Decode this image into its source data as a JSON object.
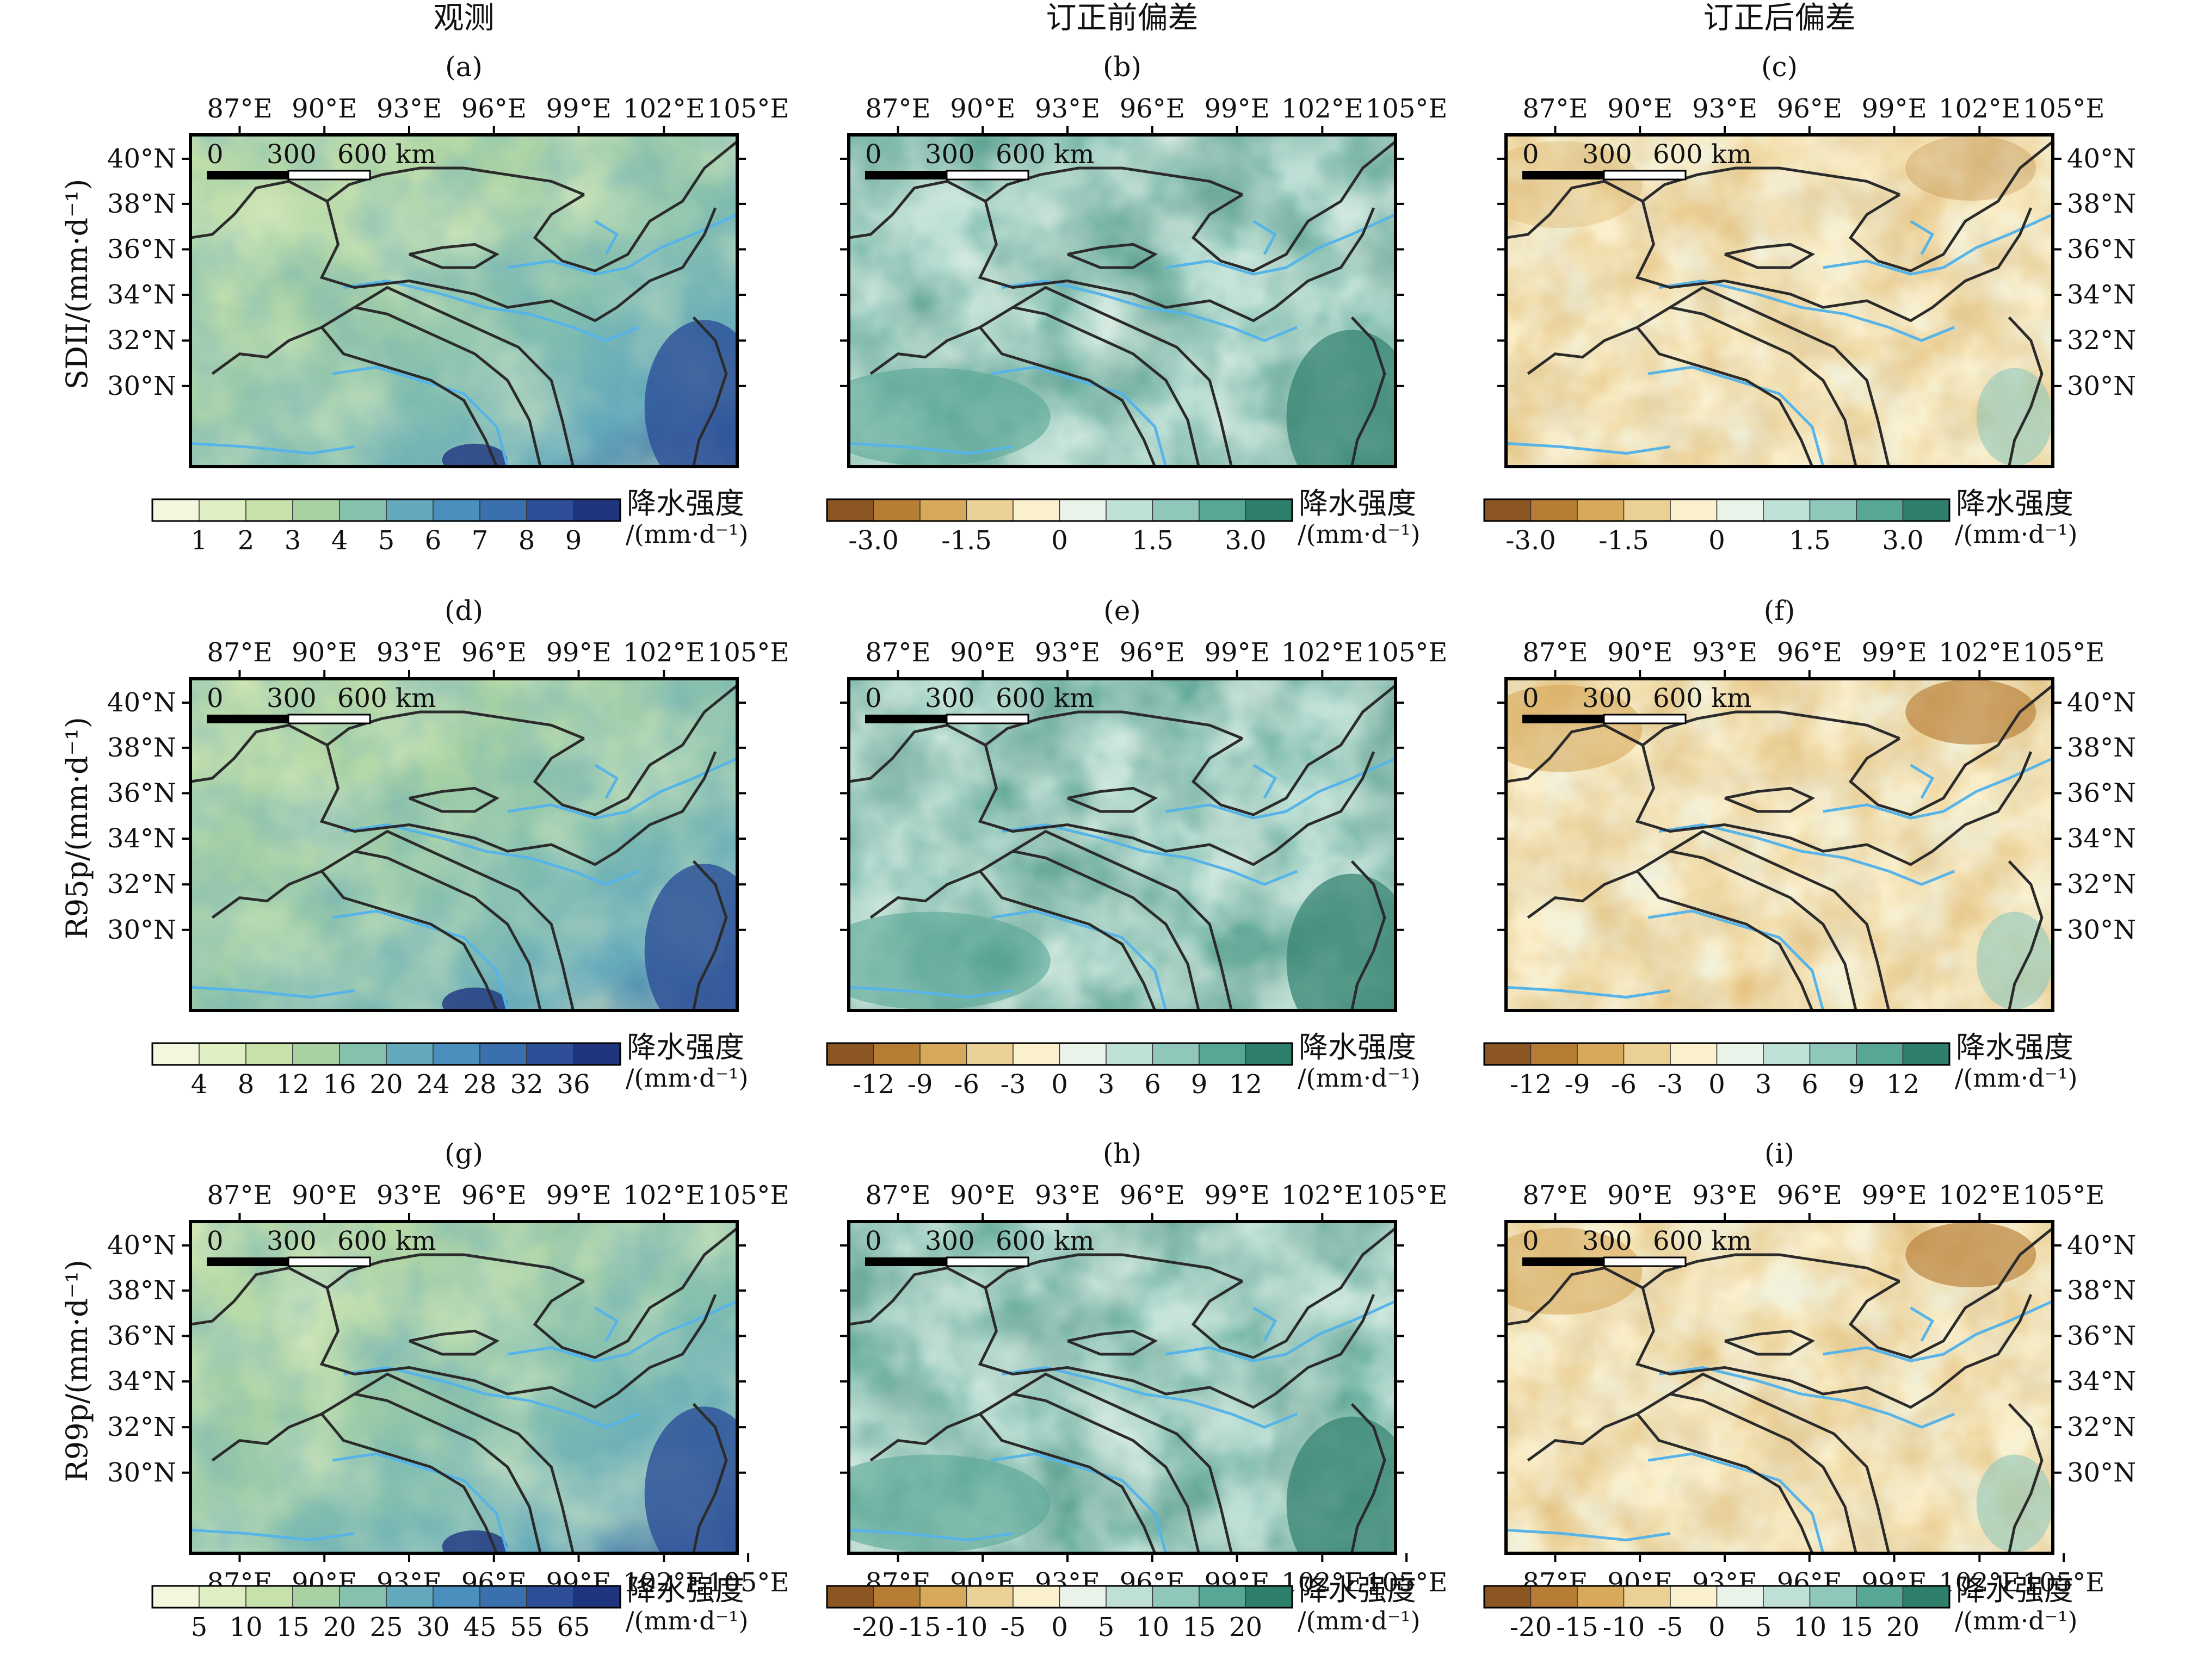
{
  "column_titles": [
    "观测",
    "订正前偏差",
    "订正后偏差"
  ],
  "row_ylabels": [
    "SDII/(mm·d⁻¹)",
    "R95p/(mm·d⁻¹)",
    "R99p/(mm·d⁻¹)"
  ],
  "panel_letters": [
    "(a)",
    "(b)",
    "(c)",
    "(d)",
    "(e)",
    "(f)",
    "(g)",
    "(h)",
    "(i)"
  ],
  "lon_ticks": [
    "87°E",
    "90°E",
    "93°E",
    "96°E",
    "99°E",
    "102°E",
    "105°E"
  ],
  "lat_ticks": [
    "40°N",
    "38°N",
    "36°N",
    "34°N",
    "32°N",
    "30°N"
  ],
  "scalebar_labels": [
    "0",
    "300",
    "600 km"
  ],
  "colorbar_title": "降水强度",
  "colorbar_unit": "/(mm·d⁻¹)",
  "colorbars": [
    {
      "type": "sequential",
      "labels": [
        "1",
        "2",
        "3",
        "4",
        "5",
        "6",
        "7",
        "8",
        "9"
      ]
    },
    {
      "type": "diverging",
      "labels": [
        "-3.0",
        "-1.5",
        "0",
        "1.5",
        "3.0"
      ]
    },
    {
      "type": "diverging",
      "labels": [
        "-3.0",
        "-1.5",
        "0",
        "1.5",
        "3.0"
      ]
    },
    {
      "type": "sequential",
      "labels": [
        "4",
        "8",
        "12",
        "16",
        "20",
        "24",
        "28",
        "32",
        "36"
      ]
    },
    {
      "type": "diverging",
      "labels": [
        "-12",
        "-9",
        "-6",
        "-3",
        "0",
        "3",
        "6",
        "9",
        "12"
      ]
    },
    {
      "type": "diverging",
      "labels": [
        "-12",
        "-9",
        "-6",
        "-3",
        "0",
        "3",
        "6",
        "9",
        "12"
      ]
    },
    {
      "type": "sequential",
      "labels": [
        "5",
        "10",
        "15",
        "20",
        "25",
        "30",
        "45",
        "55",
        "65"
      ]
    },
    {
      "type": "diverging",
      "labels": [
        "-20",
        "-15",
        "-10",
        "-5",
        "0",
        "5",
        "10",
        "15",
        "20"
      ]
    },
    {
      "type": "diverging",
      "labels": [
        "-20",
        "-15",
        "-10",
        "-5",
        "0",
        "5",
        "10",
        "15",
        "20"
      ]
    }
  ],
  "colors": {
    "sequential": [
      "#f3f7dd",
      "#e0eec4",
      "#c6e1a9",
      "#a9d2a4",
      "#86c0ae",
      "#63a9bc",
      "#4a8fbd",
      "#3a70ad",
      "#2c4f98",
      "#1f3580"
    ],
    "diverging": [
      "#8b5622",
      "#b77d34",
      "#d7a95a",
      "#ecd197",
      "#fbf0cd",
      "#e9f3ea",
      "#bfe0d6",
      "#8fc8bb",
      "#58a796",
      "#2f7f6d"
    ],
    "basin_border": "#2b2b2b",
    "river": "#56b4e9",
    "frame": "#000000"
  }
}
